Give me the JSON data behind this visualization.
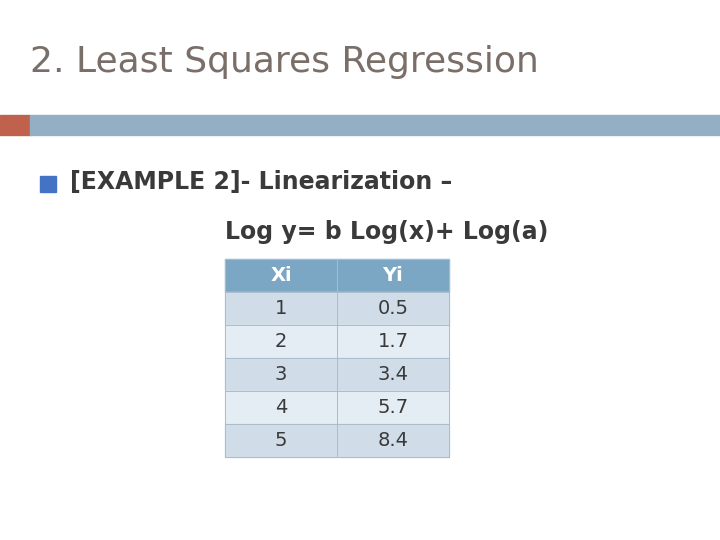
{
  "title": "2. Least Squares Regression",
  "title_color": "#7a6e68",
  "title_fontsize": 26,
  "banner_color_left": "#c0614d",
  "banner_color_right": "#94aec4",
  "bullet_color": "#4472c4",
  "line1_text": "[EXAMPLE 2]- Linearization –",
  "line2_text": "Log y= b Log(x)+ Log(a)",
  "text_fontsize": 17,
  "text_color": "#3a3a3a",
  "table_col_labels": [
    "Xi",
    "Yi"
  ],
  "table_data": [
    [
      1,
      "0.5"
    ],
    [
      2,
      "1.7"
    ],
    [
      3,
      "3.4"
    ],
    [
      4,
      "5.7"
    ],
    [
      5,
      "8.4"
    ]
  ],
  "table_header_color": "#7ba7c4",
  "table_header_text_color": "#ffffff",
  "table_row_colors": [
    "#d0dce8",
    "#e4ecf4"
  ],
  "background_color": "#ffffff"
}
